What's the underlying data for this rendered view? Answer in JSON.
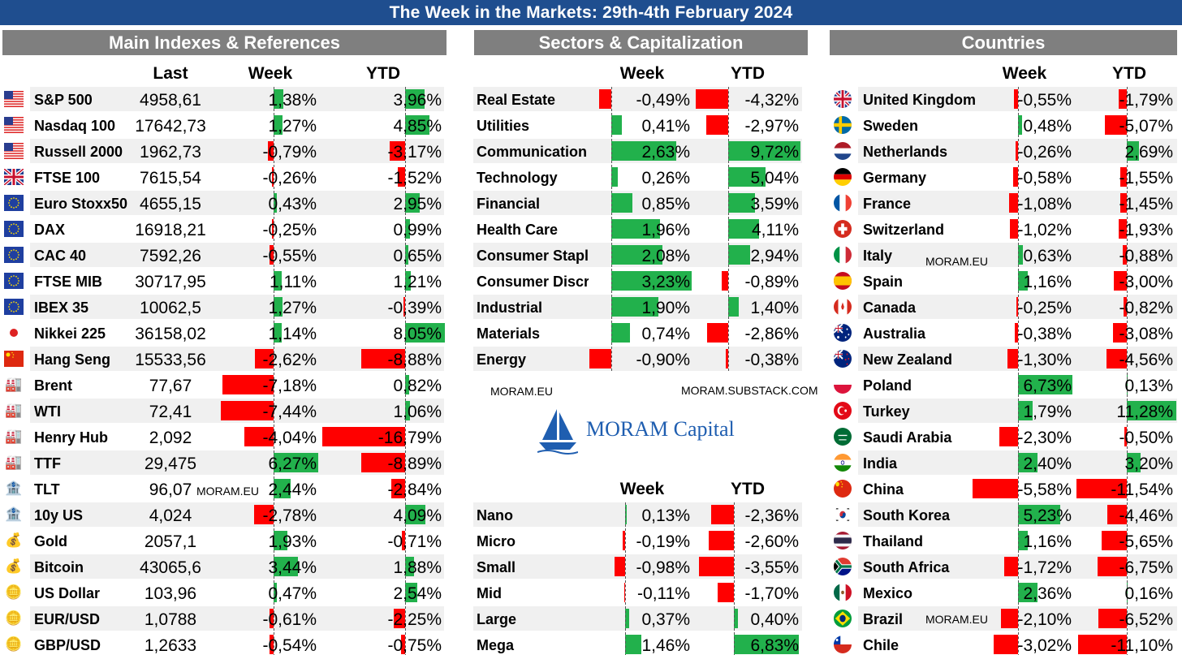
{
  "title": "The Week in the Markets: 29th-4th February 2024",
  "sections": {
    "main": "Main Indexes & References",
    "sectors": "Sectors & Capitalization",
    "countries": "Countries"
  },
  "headers": {
    "last": "Last",
    "week": "Week",
    "ytd": "YTD"
  },
  "watermarks": {
    "main": "MORAM.EU",
    "sectors_left": "MORAM.EU",
    "sectors_right": "MORAM.SUBSTACK.COM",
    "countries_italy": "MORAM.EU",
    "countries_brazil": "MORAM.EU"
  },
  "logo_text": "MORAM Capital",
  "colors": {
    "positive": "#22b14c",
    "negative": "#ff0000",
    "title_bg": "#1f4e8f",
    "header_bg": "#7f7f7f"
  },
  "main_rows": [
    {
      "icon": "us-flag-icon",
      "name": "S&P 500",
      "last": "4958,61",
      "week": "1,38%",
      "week_v": 1.38,
      "ytd": "3,96%",
      "ytd_v": 3.96
    },
    {
      "icon": "us-flag-icon",
      "name": "Nasdaq 100",
      "last": "17642,73",
      "week": "1,27%",
      "week_v": 1.27,
      "ytd": "4,85%",
      "ytd_v": 4.85
    },
    {
      "icon": "us-flag-icon",
      "name": "Russell 2000",
      "last": "1962,73",
      "week": "-0,79%",
      "week_v": -0.79,
      "ytd": "-3,17%",
      "ytd_v": -3.17
    },
    {
      "icon": "uk-flag-icon",
      "name": "FTSE 100",
      "last": "7615,54",
      "week": "-0,26%",
      "week_v": -0.26,
      "ytd": "-1,52%",
      "ytd_v": -1.52
    },
    {
      "icon": "eu-flag-icon",
      "name": "Euro Stoxx50",
      "last": "4655,15",
      "week": "0,43%",
      "week_v": 0.43,
      "ytd": "2,95%",
      "ytd_v": 2.95
    },
    {
      "icon": "eu-flag-icon",
      "name": "DAX",
      "last": "16918,21",
      "week": "-0,25%",
      "week_v": -0.25,
      "ytd": "0,99%",
      "ytd_v": 0.99
    },
    {
      "icon": "eu-flag-icon",
      "name": "CAC 40",
      "last": "7592,26",
      "week": "-0,55%",
      "week_v": -0.55,
      "ytd": "0,65%",
      "ytd_v": 0.65
    },
    {
      "icon": "eu-flag-icon",
      "name": "FTSE MIB",
      "last": "30717,95",
      "week": "1,11%",
      "week_v": 1.11,
      "ytd": "1,21%",
      "ytd_v": 1.21
    },
    {
      "icon": "eu-flag-icon",
      "name": "IBEX 35",
      "last": "10062,5",
      "week": "1,27%",
      "week_v": 1.27,
      "ytd": "-0,39%",
      "ytd_v": -0.39
    },
    {
      "icon": "japan-flag-icon",
      "name": "Nikkei 225",
      "last": "36158,02",
      "week": "1,14%",
      "week_v": 1.14,
      "ytd": "8,05%",
      "ytd_v": 8.05
    },
    {
      "icon": "china-flag-icon",
      "name": "Hang Seng",
      "last": "15533,56",
      "week": "-2,62%",
      "week_v": -2.62,
      "ytd": "-8,88%",
      "ytd_v": -8.88
    },
    {
      "icon": "oil-rig-icon",
      "name": "Brent",
      "last": "77,67",
      "week": "-7,18%",
      "week_v": -7.18,
      "ytd": "0,82%",
      "ytd_v": 0.82
    },
    {
      "icon": "oil-rig-icon",
      "name": "WTI",
      "last": "72,41",
      "week": "-7,44%",
      "week_v": -7.44,
      "ytd": "1,06%",
      "ytd_v": 1.06
    },
    {
      "icon": "oil-rig-icon",
      "name": "Henry Hub",
      "last": "2,092",
      "week": "-4,04%",
      "week_v": -4.04,
      "ytd": "-16,79%",
      "ytd_v": -16.79
    },
    {
      "icon": "oil-rig-icon",
      "name": "TTF",
      "last": "29,475",
      "week": "6,27%",
      "week_v": 6.27,
      "ytd": "-8,89%",
      "ytd_v": -8.89
    },
    {
      "icon": "bank-icon",
      "name": "TLT",
      "last": "96,07",
      "week": "2,44%",
      "week_v": 2.44,
      "ytd": "-2,84%",
      "ytd_v": -2.84
    },
    {
      "icon": "bank-icon",
      "name": "10y US",
      "last": "4,024",
      "week": "-2,78%",
      "week_v": -2.78,
      "ytd": "4,09%",
      "ytd_v": 4.09
    },
    {
      "icon": "gold-coins-icon",
      "name": "Gold",
      "last": "2057,1",
      "week": "1,93%",
      "week_v": 1.93,
      "ytd": "-0,71%",
      "ytd_v": -0.71
    },
    {
      "icon": "gold-coins-icon",
      "name": "Bitcoin",
      "last": "43065,6",
      "week": "3,44%",
      "week_v": 3.44,
      "ytd": "1,88%",
      "ytd_v": 1.88
    },
    {
      "icon": "money-coins-icon",
      "name": "US Dollar",
      "last": "103,96",
      "week": "0,47%",
      "week_v": 0.47,
      "ytd": "2,54%",
      "ytd_v": 2.54
    },
    {
      "icon": "money-coins-icon",
      "name": "EUR/USD",
      "last": "1,0788",
      "week": "-0,61%",
      "week_v": -0.61,
      "ytd": "-2,25%",
      "ytd_v": -2.25
    },
    {
      "icon": "money-coins-icon",
      "name": "GBP/USD",
      "last": "1,2633",
      "week": "-0,54%",
      "week_v": -0.54,
      "ytd": "-0,75%",
      "ytd_v": -0.75
    }
  ],
  "sector_rows": [
    {
      "name": "Real Estate",
      "week": "-0,49%",
      "week_v": -0.49,
      "ytd": "-4,32%",
      "ytd_v": -4.32
    },
    {
      "name": "Utilities",
      "week": "0,41%",
      "week_v": 0.41,
      "ytd": "-2,97%",
      "ytd_v": -2.97
    },
    {
      "name": "Communication",
      "week": "2,63%",
      "week_v": 2.63,
      "ytd": "9,72%",
      "ytd_v": 9.72
    },
    {
      "name": "Technology",
      "week": "0,26%",
      "week_v": 0.26,
      "ytd": "5,04%",
      "ytd_v": 5.04
    },
    {
      "name": "Financial",
      "week": "0,85%",
      "week_v": 0.85,
      "ytd": "3,59%",
      "ytd_v": 3.59
    },
    {
      "name": "Health Care",
      "week": "1,96%",
      "week_v": 1.96,
      "ytd": "4,11%",
      "ytd_v": 4.11
    },
    {
      "name": "Consumer Staple",
      "week": "2,08%",
      "week_v": 2.08,
      "ytd": "2,94%",
      "ytd_v": 2.94
    },
    {
      "name": "Consumer Discre",
      "week": "3,23%",
      "week_v": 3.23,
      "ytd": "-0,89%",
      "ytd_v": -0.89
    },
    {
      "name": "Industrial",
      "week": "1,90%",
      "week_v": 1.9,
      "ytd": "1,40%",
      "ytd_v": 1.4
    },
    {
      "name": "Materials",
      "week": "0,74%",
      "week_v": 0.74,
      "ytd": "-2,86%",
      "ytd_v": -2.86
    },
    {
      "name": "Energy",
      "week": "-0,90%",
      "week_v": -0.9,
      "ytd": "-0,38%",
      "ytd_v": -0.38
    }
  ],
  "cap_rows": [
    {
      "name": "Nano",
      "week": "0,13%",
      "week_v": 0.13,
      "ytd": "-2,36%",
      "ytd_v": -2.36
    },
    {
      "name": "Micro",
      "week": "-0,19%",
      "week_v": -0.19,
      "ytd": "-2,60%",
      "ytd_v": -2.6
    },
    {
      "name": "Small",
      "week": "-0,98%",
      "week_v": -0.98,
      "ytd": "-3,55%",
      "ytd_v": -3.55
    },
    {
      "name": "Mid",
      "week": "-0,11%",
      "week_v": -0.11,
      "ytd": "-1,70%",
      "ytd_v": -1.7
    },
    {
      "name": "Large",
      "week": "0,37%",
      "week_v": 0.37,
      "ytd": "0,40%",
      "ytd_v": 0.4
    },
    {
      "name": "Mega",
      "week": "1,46%",
      "week_v": 1.46,
      "ytd": "6,83%",
      "ytd_v": 6.83
    }
  ],
  "country_rows": [
    {
      "icon": "uk-flag-icon",
      "name": "United Kingdom",
      "week": "-0,55%",
      "week_v": -0.55,
      "ytd": "-1,79%",
      "ytd_v": -1.79
    },
    {
      "icon": "sweden-flag-icon",
      "name": "Sweden",
      "week": "0,48%",
      "week_v": 0.48,
      "ytd": "-5,07%",
      "ytd_v": -5.07
    },
    {
      "icon": "netherlands-flag-icon",
      "name": "Netherlands",
      "week": "-0,26%",
      "week_v": -0.26,
      "ytd": "2,69%",
      "ytd_v": 2.69
    },
    {
      "icon": "germany-flag-icon",
      "name": "Germany",
      "week": "-0,58%",
      "week_v": -0.58,
      "ytd": "-1,55%",
      "ytd_v": -1.55
    },
    {
      "icon": "france-flag-icon",
      "name": "France",
      "week": "-1,08%",
      "week_v": -1.08,
      "ytd": "-1,45%",
      "ytd_v": -1.45
    },
    {
      "icon": "switzerland-flag-icon",
      "name": "Switzerland",
      "week": "-1,02%",
      "week_v": -1.02,
      "ytd": "-1,93%",
      "ytd_v": -1.93
    },
    {
      "icon": "italy-flag-icon",
      "name": "Italy",
      "week": "0,63%",
      "week_v": 0.63,
      "ytd": "-0,88%",
      "ytd_v": -0.88
    },
    {
      "icon": "spain-flag-icon",
      "name": "Spain",
      "week": "1,16%",
      "week_v": 1.16,
      "ytd": "-3,00%",
      "ytd_v": -3.0
    },
    {
      "icon": "canada-flag-icon",
      "name": "Canada",
      "week": "-0,25%",
      "week_v": -0.25,
      "ytd": "-0,82%",
      "ytd_v": -0.82
    },
    {
      "icon": "australia-flag-icon",
      "name": "Australia",
      "week": "-0,38%",
      "week_v": -0.38,
      "ytd": "-3,08%",
      "ytd_v": -3.08
    },
    {
      "icon": "new-zealand-flag-icon",
      "name": "New Zealand",
      "week": "-1,30%",
      "week_v": -1.3,
      "ytd": "-4,56%",
      "ytd_v": -4.56
    },
    {
      "icon": "poland-flag-icon",
      "name": "Poland",
      "week": "6,73%",
      "week_v": 6.73,
      "ytd": "0,13%",
      "ytd_v": 0.13
    },
    {
      "icon": "turkey-flag-icon",
      "name": "Turkey",
      "week": "1,79%",
      "week_v": 1.79,
      "ytd": "11,28%",
      "ytd_v": 11.28
    },
    {
      "icon": "saudi-arabia-flag-icon",
      "name": "Saudi Arabia",
      "week": "-2,30%",
      "week_v": -2.3,
      "ytd": "-0,50%",
      "ytd_v": -0.5
    },
    {
      "icon": "india-flag-icon",
      "name": "India",
      "week": "2,40%",
      "week_v": 2.4,
      "ytd": "3,20%",
      "ytd_v": 3.2
    },
    {
      "icon": "china-flag-icon",
      "name": "China",
      "week": "-5,58%",
      "week_v": -5.58,
      "ytd": "-11,54%",
      "ytd_v": -11.54
    },
    {
      "icon": "south-korea-flag-icon",
      "name": "South Korea",
      "week": "5,23%",
      "week_v": 5.23,
      "ytd": "-4,46%",
      "ytd_v": -4.46
    },
    {
      "icon": "thailand-flag-icon",
      "name": "Thailand",
      "week": "1,16%",
      "week_v": 1.16,
      "ytd": "-5,65%",
      "ytd_v": -5.65
    },
    {
      "icon": "south-africa-flag-icon",
      "name": "South Africa",
      "week": "-1,72%",
      "week_v": -1.72,
      "ytd": "-6,75%",
      "ytd_v": -6.75
    },
    {
      "icon": "mexico-flag-icon",
      "name": "Mexico",
      "week": "2,36%",
      "week_v": 2.36,
      "ytd": "0,16%",
      "ytd_v": 0.16
    },
    {
      "icon": "brazil-flag-icon",
      "name": "Brazil",
      "week": "-2,10%",
      "week_v": -2.1,
      "ytd": "-6,52%",
      "ytd_v": -6.52
    },
    {
      "icon": "chile-flag-icon",
      "name": "Chile",
      "week": "-3,02%",
      "week_v": -3.02,
      "ytd": "-11,10%",
      "ytd_v": -11.1
    }
  ]
}
